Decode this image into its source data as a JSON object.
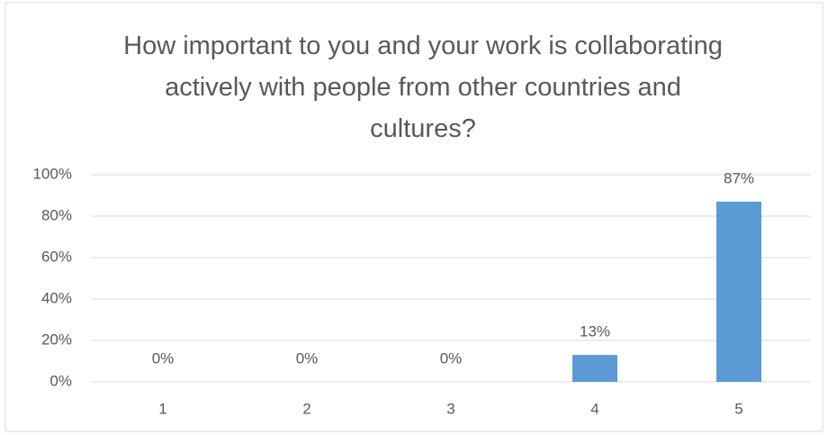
{
  "chart_data": {
    "type": "bar",
    "title": "How important to you and your work is collaborating actively with people from other countries and cultures?",
    "categories": [
      "1",
      "2",
      "3",
      "4",
      "5"
    ],
    "values": [
      0,
      0,
      0,
      13,
      87
    ],
    "value_labels": [
      "0%",
      "0%",
      "0%",
      "13%",
      "87%"
    ],
    "color": "#5b9bd5",
    "ylim": [
      0,
      100
    ],
    "yticks": [
      {
        "value": 0,
        "label": "0%"
      },
      {
        "value": 20,
        "label": "20%"
      },
      {
        "value": 40,
        "label": "40%"
      },
      {
        "value": 60,
        "label": "60%"
      },
      {
        "value": 80,
        "label": "80%"
      },
      {
        "value": 100,
        "label": "100%"
      }
    ],
    "grid": true
  }
}
